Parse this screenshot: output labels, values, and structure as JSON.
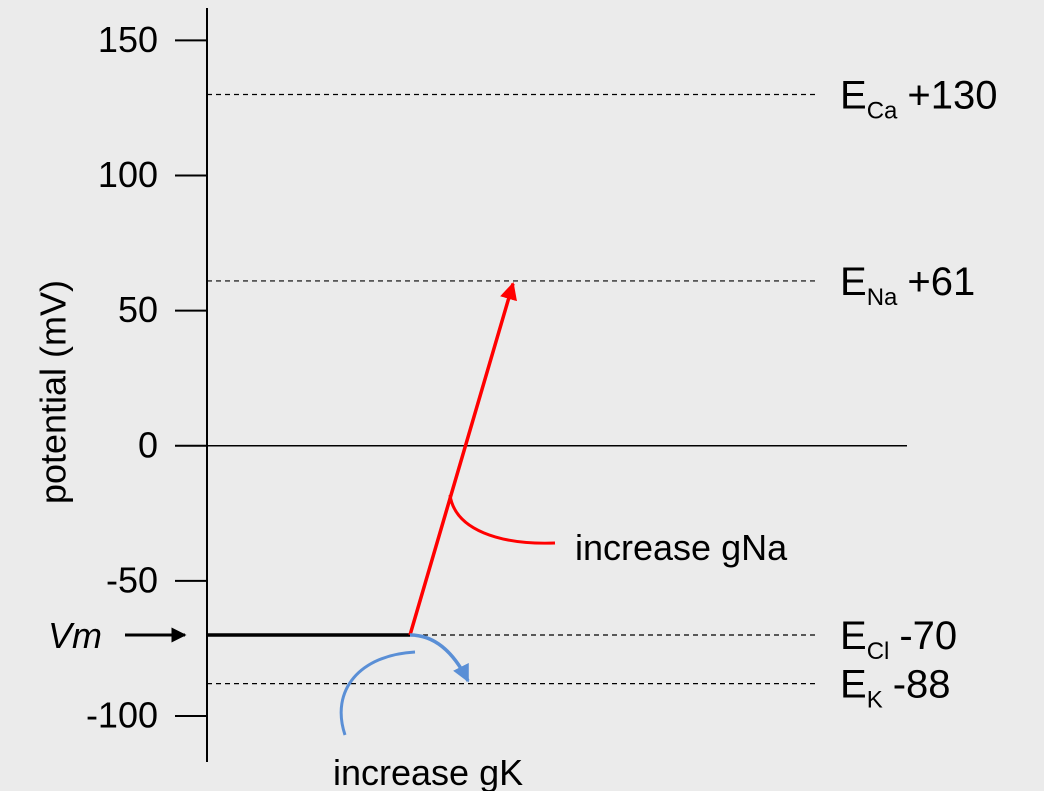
{
  "chart_data": {
    "type": "potential-levels",
    "y_label": "potential (mV)",
    "ylim": [
      -117,
      162
    ],
    "yticks": [
      -100,
      -50,
      0,
      50,
      100,
      150
    ],
    "level_symbol": "E",
    "levels": {
      "names": [
        "Ca",
        "Na",
        "Cl",
        "K"
      ],
      "values": [
        130,
        61,
        -70,
        -88
      ],
      "value_labels": [
        "+130",
        "+61",
        "-70",
        "-88"
      ]
    },
    "vm": {
      "label": "Vm",
      "value": -70
    },
    "arrows": [
      {
        "label": "increase gNa",
        "to": 60,
        "color": "#ff0000"
      },
      {
        "label": "increase gK",
        "to": -87,
        "color": "#5a8fd6"
      }
    ]
  }
}
